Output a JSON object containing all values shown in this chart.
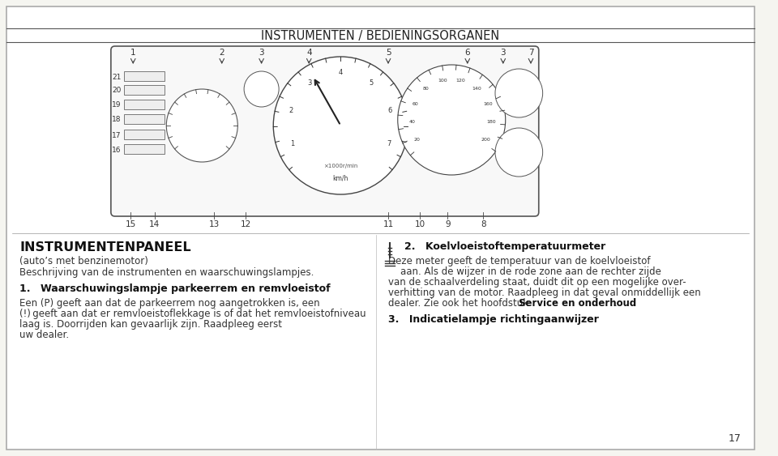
{
  "bg_color": "#f5f5f0",
  "page_border_color": "#cccccc",
  "title_text": "INSTRUMENTEN / BEDIENINGSORGANEN",
  "title_fontsize": 10.5,
  "title_color": "#222222",
  "header_main": "INSTRUMENTENPANEEL",
  "header_sub": "(auto’s met benzinemotor)",
  "header_desc": "Beschrijving van de instrumenten en waarschuwingslampjes.",
  "section1_title": "1. Waarschuwingslampje parkeerrem en remvloeistof",
  "section1_body": "Een (P) geeft aan dat de parkeerrem nog aangetrokken is, een\n(!) geeft aan dat er remvloeistoflekkage is of dat het remvloeistofniveau laag is. Doorrijden kan gevaarlijk zijn. Raadpleeg eerst\nuw dealer.",
  "section2_title": "2. Koelvloeistoftemperatuurmeter",
  "section2_body1": "Deze meter geeft de temperatuur van de koelvloeistof\n    aan. Als de wijzer in de rode zone aan de rechter zijde\nvan de schaalverdeling staat, duidt dit op een mogelijke over-\nverhitting van de motor. Raadpleeg in dat geval onmiddellijk een\ndealer. Zie ook het hoofdstuk ",
  "section2_body_bold": "Service en onderhoud",
  "section2_body2": ".",
  "section3_title": "3. Indicatielampje richtingaanwijzer",
  "page_number": "17",
  "text_color": "#333333",
  "bold_color": "#111111",
  "body_fontsize": 8.5,
  "section_title_fontsize": 9.0,
  "header_main_fontsize": 11.5
}
